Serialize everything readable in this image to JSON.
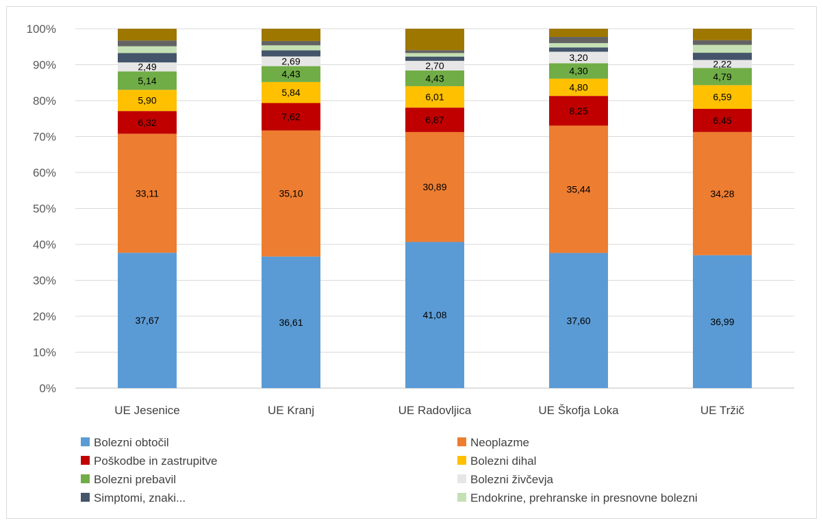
{
  "chart_data": {
    "type": "bar",
    "stacked": true,
    "percent_stacked": true,
    "categories": [
      "UE Jesenice",
      "UE Kranj",
      "UE Radovljica",
      "UE Škofja Loka",
      "UE Tržič"
    ],
    "y_ticks": [
      "0%",
      "10%",
      "20%",
      "30%",
      "40%",
      "50%",
      "60%",
      "70%",
      "80%",
      "90%",
      "100%"
    ],
    "ylim": [
      0,
      100
    ],
    "grid": true,
    "legend_position": "bottom",
    "series": [
      {
        "name": "Bolezni obtočil",
        "color": "#5b9bd5",
        "values": [
          37.67,
          36.61,
          41.08,
          37.6,
          36.99
        ],
        "labels": [
          "37,67",
          "36,61",
          "41,08",
          "37,60",
          "36,99"
        ]
      },
      {
        "name": "Neoplazme",
        "color": "#ed7d31",
        "values": [
          33.11,
          35.1,
          30.89,
          35.44,
          34.28
        ],
        "labels": [
          "33,11",
          "35,10",
          "30,89",
          "35,44",
          "34,28"
        ]
      },
      {
        "name": "Poškodbe in zastrupitve",
        "color": "#c00000",
        "values": [
          6.32,
          7.62,
          6.87,
          8.25,
          6.45
        ],
        "labels": [
          "6,32",
          "7,62",
          "6,87",
          "8,25",
          "6,45"
        ]
      },
      {
        "name": "Bolezni dihal",
        "color": "#ffc000",
        "values": [
          5.9,
          5.84,
          6.01,
          4.8,
          6.59
        ],
        "labels": [
          "5,90",
          "5,84",
          "6,01",
          "4,80",
          "6,59"
        ]
      },
      {
        "name": "Bolezni prebavil",
        "color": "#70ad47",
        "values": [
          5.14,
          4.43,
          4.43,
          4.3,
          4.79
        ],
        "labels": [
          "5,14",
          "4,43",
          "4,43",
          "4,30",
          "4,79"
        ]
      },
      {
        "name": "Bolezni živčevja",
        "color": "#e7e6e6",
        "values": [
          2.49,
          2.69,
          2.7,
          3.2,
          2.22
        ],
        "labels": [
          "2,49",
          "2,69",
          "2,70",
          "3,20",
          "2,22"
        ]
      },
      {
        "name": "Simptomi, znaki...",
        "color": "#44546a",
        "values": [
          2.6,
          1.7,
          1.2,
          1.2,
          2.0
        ],
        "labels": [
          "",
          "",
          "",
          "",
          ""
        ]
      },
      {
        "name": "Endokrine, prehranske in presnovne bolezni",
        "color": "#c5e0b4",
        "values": [
          1.9,
          1.4,
          1.0,
          1.2,
          2.2
        ],
        "labels": [
          "",
          "",
          "",
          "",
          ""
        ]
      },
      {
        "name": "",
        "color": "#636363",
        "values": [
          1.6,
          1.2,
          0.8,
          1.7,
          1.3
        ],
        "labels": [
          "",
          "",
          "",
          "",
          ""
        ]
      },
      {
        "name": "",
        "color": "#9e7700",
        "values": [
          3.27,
          3.41,
          6.02,
          2.29,
          3.18
        ],
        "labels": [
          "",
          "",
          "",
          "",
          ""
        ]
      }
    ]
  }
}
